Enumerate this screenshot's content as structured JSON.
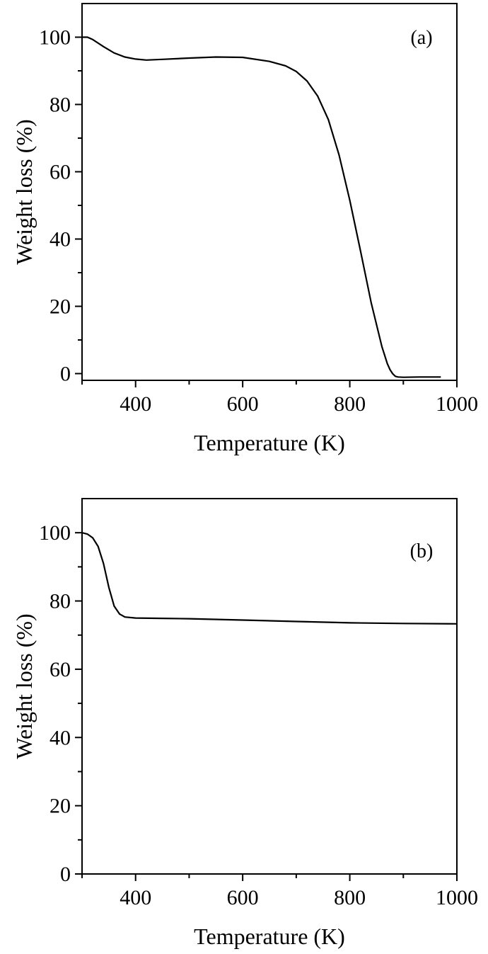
{
  "chart_data": [
    {
      "type": "line",
      "panel_label": "(a)",
      "xlabel": "Temperature (K)",
      "ylabel": "Weight loss (%)",
      "xlim": [
        300,
        1000
      ],
      "ylim": [
        -2,
        110
      ],
      "x_ticks": [
        400,
        600,
        800,
        1000
      ],
      "y_ticks": [
        0,
        20,
        40,
        60,
        80,
        100
      ],
      "series": [
        {
          "x": [
            300,
            310,
            320,
            340,
            360,
            380,
            400,
            420,
            450,
            500,
            550,
            600,
            650,
            680,
            700,
            720,
            740,
            760,
            780,
            800,
            820,
            840,
            860,
            870,
            875,
            880,
            885,
            890,
            900,
            930,
            970
          ],
          "y": [
            100,
            100,
            99.3,
            97.2,
            95.3,
            94.1,
            93.5,
            93.2,
            93.4,
            93.8,
            94.1,
            94.0,
            92.8,
            91.5,
            89.8,
            87.0,
            82.5,
            75.5,
            65.0,
            51.5,
            36.5,
            21.0,
            8.0,
            3.0,
            1.2,
            0.0,
            -0.8,
            -1.0,
            -1.1,
            -1.0,
            -1.0
          ]
        }
      ]
    },
    {
      "type": "line",
      "panel_label": "(b)",
      "xlabel": "Temperature (K)",
      "ylabel": "Weight loss (%)",
      "xlim": [
        300,
        1000
      ],
      "ylim": [
        0,
        110
      ],
      "x_ticks": [
        400,
        600,
        800,
        1000
      ],
      "y_ticks": [
        0,
        20,
        40,
        60,
        80,
        100
      ],
      "series": [
        {
          "x": [
            300,
            310,
            320,
            330,
            340,
            350,
            360,
            370,
            380,
            400,
            450,
            500,
            600,
            700,
            800,
            900,
            1000
          ],
          "y": [
            100,
            99.6,
            98.5,
            96.0,
            91.0,
            84.0,
            78.5,
            76.2,
            75.3,
            75.0,
            74.9,
            74.8,
            74.4,
            74.0,
            73.6,
            73.4,
            73.3
          ]
        }
      ]
    }
  ]
}
